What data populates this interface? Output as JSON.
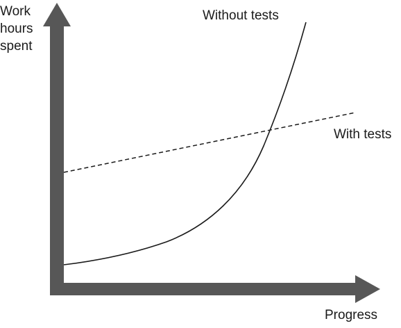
{
  "axes": {
    "y_label_lines": [
      "Work",
      "hours",
      "spent"
    ],
    "x_label": "Progress",
    "color": "#575757"
  },
  "curves": {
    "without_tests": {
      "label": "Without tests",
      "style": "solid",
      "color": "#1a1a1a"
    },
    "with_tests": {
      "label": "With tests",
      "style": "dashed",
      "color": "#1a1a1a"
    }
  }
}
